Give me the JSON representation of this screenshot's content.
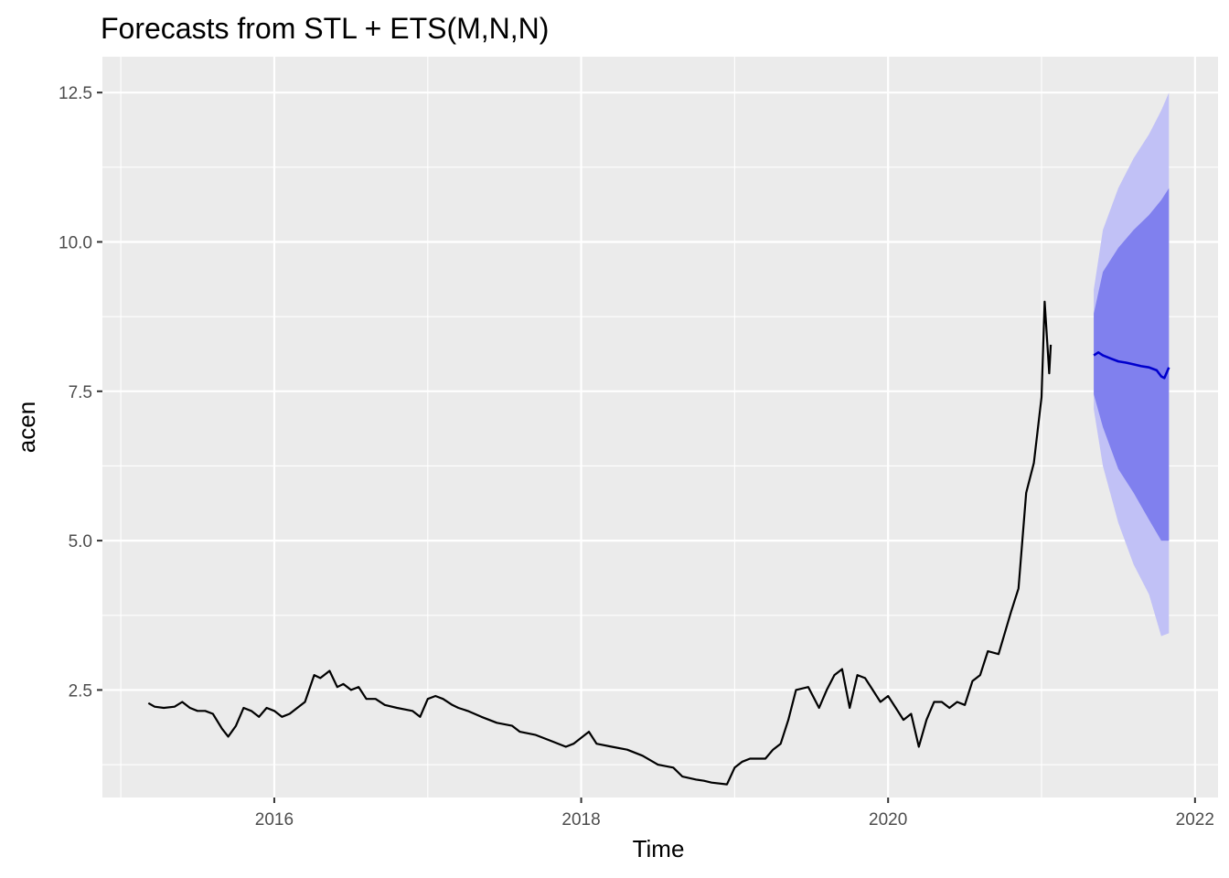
{
  "chart_data": {
    "type": "line",
    "title": "Forecasts from STL +  ETS(M,N,N)",
    "xlabel": "Time",
    "ylabel": "acen",
    "xlim": [
      2014.88,
      2022.15
    ],
    "ylim": [
      0.7,
      13.1
    ],
    "x_ticks": [
      2016,
      2018,
      2020,
      2022
    ],
    "x_tick_labels": [
      "2016",
      "2018",
      "2020",
      "2022"
    ],
    "y_ticks": [
      2.5,
      5.0,
      7.5,
      10.0,
      12.5
    ],
    "y_tick_labels": [
      "2.5",
      "5.0",
      "7.5",
      "10.0",
      "12.5"
    ],
    "grid": true,
    "colors": {
      "panel_bg": "#ebebeb",
      "grid": "#ffffff",
      "history_line": "#000000",
      "forecast_line": "#0000cd",
      "pi80": "#8080ee",
      "pi95": "#c1c1f6"
    },
    "series": [
      {
        "role": "history",
        "x": [
          2015.18,
          2015.22,
          2015.28,
          2015.35,
          2015.4,
          2015.45,
          2015.5,
          2015.55,
          2015.6,
          2015.66,
          2015.7,
          2015.75,
          2015.8,
          2015.85,
          2015.9,
          2015.95,
          2016.0,
          2016.05,
          2016.1,
          2016.15,
          2016.2,
          2016.26,
          2016.3,
          2016.36,
          2016.41,
          2016.45,
          2016.5,
          2016.55,
          2016.6,
          2016.66,
          2016.72,
          2016.8,
          2016.9,
          2016.95,
          2017.0,
          2017.05,
          2017.1,
          2017.16,
          2017.2,
          2017.26,
          2017.35,
          2017.45,
          2017.55,
          2017.6,
          2017.7,
          2017.8,
          2017.9,
          2017.95,
          2018.05,
          2018.1,
          2018.2,
          2018.3,
          2018.4,
          2018.5,
          2018.6,
          2018.66,
          2018.75,
          2018.8,
          2018.85,
          2018.95,
          2019.0,
          2019.05,
          2019.1,
          2019.2,
          2019.25,
          2019.3,
          2019.35,
          2019.4,
          2019.48,
          2019.55,
          2019.6,
          2019.65,
          2019.7,
          2019.75,
          2019.8,
          2019.85,
          2019.9,
          2019.95,
          2020.0,
          2020.05,
          2020.1,
          2020.15,
          2020.2,
          2020.25,
          2020.3,
          2020.35,
          2020.4,
          2020.45,
          2020.5,
          2020.55,
          2020.6,
          2020.65,
          2020.72,
          2020.8,
          2020.85,
          2020.9,
          2020.95,
          2021.0,
          2021.02,
          2021.05
        ],
        "y": [
          2.28,
          2.22,
          2.2,
          2.22,
          2.3,
          2.2,
          2.15,
          2.15,
          2.1,
          1.85,
          1.72,
          1.9,
          2.2,
          2.15,
          2.05,
          2.2,
          2.15,
          2.05,
          2.1,
          2.2,
          2.3,
          2.75,
          2.7,
          2.82,
          2.55,
          2.6,
          2.5,
          2.55,
          2.35,
          2.35,
          2.25,
          2.2,
          2.15,
          2.05,
          2.35,
          2.4,
          2.35,
          2.25,
          2.2,
          2.15,
          2.05,
          1.95,
          1.9,
          1.8,
          1.75,
          1.65,
          1.55,
          1.6,
          1.8,
          1.6,
          1.55,
          1.5,
          1.4,
          1.25,
          1.2,
          1.05,
          1.0,
          0.98,
          0.95,
          0.92,
          1.2,
          1.3,
          1.35,
          1.35,
          1.5,
          1.6,
          2.0,
          2.5,
          2.55,
          2.2,
          2.5,
          2.75,
          2.85,
          2.2,
          2.75,
          2.7,
          2.5,
          2.3,
          2.4,
          2.2,
          2.0,
          2.1,
          1.55,
          2.0,
          2.3,
          2.3,
          2.2,
          2.3,
          2.25,
          2.65,
          2.75,
          3.15,
          3.1,
          3.8,
          4.2,
          5.8,
          6.3,
          7.4,
          9.0,
          7.8
        ],
        "last_value": 8.28
      },
      {
        "role": "forecast",
        "x": [
          2021.34,
          2021.37,
          2021.4,
          2021.45,
          2021.5,
          2021.55,
          2021.6,
          2021.65,
          2021.7,
          2021.75,
          2021.78,
          2021.8,
          2021.83
        ],
        "y": [
          8.1,
          8.15,
          8.1,
          8.05,
          8.0,
          7.98,
          7.95,
          7.92,
          7.9,
          7.85,
          7.75,
          7.72,
          7.9
        ]
      }
    ],
    "intervals": {
      "x": [
        2021.34,
        2021.4,
        2021.5,
        2021.6,
        2021.7,
        2021.78,
        2021.83
      ],
      "lo80": [
        7.45,
        6.9,
        6.2,
        5.8,
        5.35,
        5.0,
        5.0
      ],
      "hi80": [
        8.8,
        9.5,
        9.9,
        10.2,
        10.45,
        10.7,
        10.9
      ],
      "lo95": [
        7.2,
        6.25,
        5.3,
        4.6,
        4.1,
        3.4,
        3.45
      ],
      "hi95": [
        9.2,
        10.2,
        10.9,
        11.4,
        11.8,
        12.2,
        12.5
      ]
    }
  }
}
